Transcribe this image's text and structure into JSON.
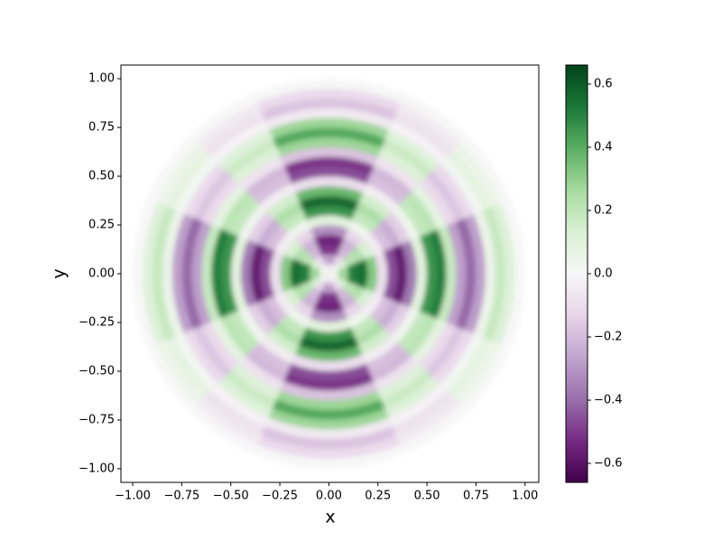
{
  "chart_data": {
    "type": "polar_heatmap",
    "xlabel": "x",
    "ylabel": "y",
    "xlim": [
      -1.06,
      1.07
    ],
    "ylim": [
      -1.07,
      1.07
    ],
    "xticks": [
      {
        "value": -1,
        "label": "−1.00"
      },
      {
        "value": -0.75,
        "label": "−0.75"
      },
      {
        "value": -0.5,
        "label": "−0.50"
      },
      {
        "value": -0.25,
        "label": "−0.25"
      },
      {
        "value": 0,
        "label": "0.00"
      },
      {
        "value": 0.25,
        "label": "0.25"
      },
      {
        "value": 0.5,
        "label": "0.50"
      },
      {
        "value": 0.75,
        "label": "0.75"
      },
      {
        "value": 1,
        "label": "1.00"
      }
    ],
    "yticks": [
      {
        "value": -1,
        "label": "−1.00"
      },
      {
        "value": -0.75,
        "label": "−0.75"
      },
      {
        "value": -0.5,
        "label": "−0.50"
      },
      {
        "value": -0.25,
        "label": "−0.25"
      },
      {
        "value": 0,
        "label": "0.00"
      },
      {
        "value": 0.25,
        "label": "0.25"
      },
      {
        "value": 0.5,
        "label": "0.50"
      },
      {
        "value": 0.75,
        "label": "0.75"
      },
      {
        "value": 1,
        "label": "1.00"
      }
    ],
    "clim": [
      -0.66,
      0.66
    ],
    "cticks": [
      {
        "value": -0.6,
        "label": "−0.6"
      },
      {
        "value": -0.4,
        "label": "−0.4"
      },
      {
        "value": -0.2,
        "label": "−0.2"
      },
      {
        "value": 0,
        "label": "0.0"
      },
      {
        "value": 0.2,
        "label": "0.2"
      },
      {
        "value": 0.4,
        "label": "0.4"
      },
      {
        "value": 0.6,
        "label": "0.6"
      }
    ],
    "colormap": [
      "#40004b",
      "#762a83",
      "#9970ab",
      "#c2a5cf",
      "#e7d4e8",
      "#f7f7f7",
      "#d9f0d3",
      "#a6dba0",
      "#5aae61",
      "#1b7837",
      "#00441b"
    ],
    "r_edges": [
      0,
      0.05,
      0.1,
      0.15,
      0.2,
      0.25,
      0.3,
      0.35,
      0.4,
      0.45,
      0.5,
      0.55,
      0.6,
      0.65,
      0.7,
      0.75,
      0.8,
      0.85,
      0.9,
      0.95,
      1.0
    ],
    "theta_edges": [
      0,
      22.5,
      45,
      67.5,
      90,
      112.5,
      135,
      157.5,
      180,
      202.5,
      225,
      247.5,
      270,
      292.5,
      315,
      337.5,
      360
    ],
    "values": [
      [
        0.05,
        0.02,
        -0.02,
        -0.05,
        -0.05,
        -0.02,
        0.02,
        0.05,
        0.05,
        0.02,
        -0.02,
        -0.05,
        -0.05,
        -0.02,
        0.02,
        0.05
      ],
      [
        0.28,
        0.11,
        -0.11,
        -0.28,
        -0.28,
        -0.11,
        0.11,
        0.28,
        0.28,
        0.11,
        -0.11,
        -0.28,
        -0.28,
        -0.11,
        0.11,
        0.28
      ],
      [
        0.51,
        0.21,
        -0.21,
        -0.51,
        -0.51,
        -0.21,
        0.21,
        0.51,
        0.51,
        0.21,
        -0.21,
        -0.51,
        -0.51,
        -0.21,
        0.21,
        0.51
      ],
      [
        0.55,
        0.23,
        -0.23,
        -0.55,
        -0.55,
        -0.23,
        0.23,
        0.55,
        0.55,
        0.23,
        -0.23,
        -0.55,
        -0.55,
        -0.23,
        0.23,
        0.55
      ],
      [
        0.32,
        0.13,
        -0.13,
        -0.32,
        -0.32,
        -0.13,
        0.13,
        0.32,
        0.32,
        0.13,
        -0.13,
        -0.32,
        -0.32,
        -0.13,
        0.13,
        0.32
      ],
      [
        -0.09,
        -0.04,
        0.04,
        0.09,
        0.09,
        0.04,
        -0.04,
        -0.09,
        -0.09,
        -0.04,
        0.04,
        0.09,
        0.09,
        0.04,
        -0.04,
        -0.09
      ],
      [
        -0.46,
        -0.19,
        0.19,
        0.46,
        0.46,
        0.19,
        -0.19,
        -0.46,
        -0.46,
        -0.19,
        0.19,
        0.46,
        0.46,
        0.19,
        -0.19,
        -0.46
      ],
      [
        -0.57,
        -0.24,
        0.24,
        0.57,
        0.57,
        0.24,
        -0.24,
        -0.57,
        -0.57,
        -0.24,
        0.24,
        0.57,
        0.57,
        0.24,
        -0.24,
        -0.57
      ],
      [
        -0.37,
        -0.15,
        0.15,
        0.37,
        0.37,
        0.15,
        -0.15,
        -0.37,
        -0.37,
        -0.15,
        0.15,
        0.37,
        0.37,
        0.15,
        -0.15,
        -0.37
      ],
      [
        0.09,
        0.04,
        -0.04,
        -0.09,
        -0.09,
        -0.04,
        0.04,
        0.09,
        0.09,
        0.04,
        -0.04,
        -0.09,
        -0.09,
        -0.04,
        0.04,
        0.09
      ],
      [
        0.46,
        0.19,
        -0.19,
        -0.46,
        -0.46,
        -0.19,
        0.19,
        0.46,
        0.46,
        0.19,
        -0.19,
        -0.46,
        -0.46,
        -0.19,
        0.19,
        0.46
      ],
      [
        0.51,
        0.21,
        -0.21,
        -0.51,
        -0.51,
        -0.21,
        0.21,
        0.51,
        0.51,
        0.21,
        -0.21,
        -0.51,
        -0.51,
        -0.21,
        0.21,
        0.51
      ],
      [
        0.18,
        0.08,
        -0.08,
        -0.18,
        -0.18,
        -0.08,
        0.08,
        0.18,
        0.18,
        0.08,
        -0.08,
        -0.18,
        -0.18,
        -0.08,
        0.08,
        0.18
      ],
      [
        -0.28,
        -0.11,
        0.11,
        0.28,
        0.28,
        0.11,
        -0.11,
        -0.28,
        -0.28,
        -0.11,
        0.11,
        0.28,
        0.28,
        0.11,
        -0.11,
        -0.28
      ],
      [
        -0.41,
        -0.17,
        0.17,
        0.41,
        0.41,
        0.17,
        -0.17,
        -0.41,
        -0.41,
        -0.17,
        0.17,
        0.41,
        0.41,
        0.17,
        -0.17,
        -0.41
      ],
      [
        -0.28,
        -0.11,
        0.11,
        0.28,
        0.28,
        0.11,
        -0.11,
        -0.28,
        -0.28,
        -0.11,
        0.11,
        0.28,
        0.28,
        0.11,
        -0.11,
        -0.28
      ],
      [
        0.05,
        0.02,
        -0.02,
        -0.05,
        -0.05,
        -0.02,
        0.02,
        0.05,
        0.05,
        0.02,
        -0.02,
        -0.05,
        -0.05,
        -0.02,
        0.02,
        0.05
      ],
      [
        0.18,
        0.08,
        -0.08,
        -0.18,
        -0.18,
        -0.08,
        0.08,
        0.18,
        0.18,
        0.08,
        -0.08,
        -0.18,
        -0.18,
        -0.08,
        0.08,
        0.18
      ],
      [
        0.11,
        0.05,
        -0.05,
        -0.11,
        -0.11,
        -0.05,
        0.05,
        0.11,
        0.11,
        0.05,
        -0.05,
        -0.11,
        -0.11,
        -0.05,
        0.05,
        0.11
      ],
      [
        0,
        0,
        0,
        0,
        0,
        0,
        0,
        0,
        0,
        0,
        0,
        0,
        0,
        0,
        0,
        0
      ]
    ]
  }
}
